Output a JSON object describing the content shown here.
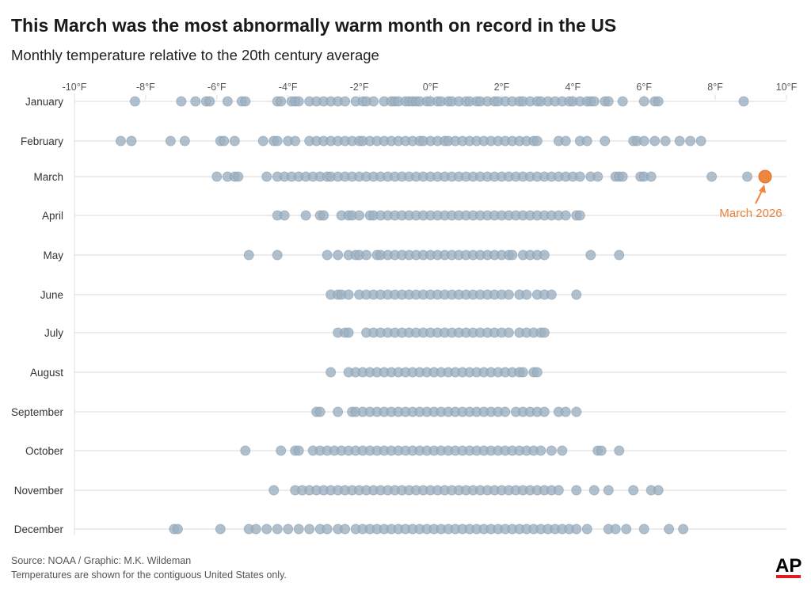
{
  "title": "This March was the most abnormally warm month on record in the US",
  "subtitle": "Monthly temperature relative to the 20th century average",
  "footer": {
    "source": "Source: NOAA / Graphic: M.K. Wildeman",
    "note": "Temperatures are shown for the contiguous United States only."
  },
  "logo": "AP",
  "colors": {
    "dot": "#9cb0c0",
    "dot_stroke": "#879db0",
    "highlight": "#ef8640",
    "grid": "#e6e6e6",
    "logo_bar": "#e21b23"
  },
  "chart_data": {
    "type": "scatter",
    "subtype": "strip",
    "xlim": [
      -10,
      10
    ],
    "x_ticks": [
      -10,
      -8,
      -6,
      -4,
      -2,
      0,
      2,
      4,
      6,
      8,
      10
    ],
    "x_tick_labels": [
      "-10°F",
      "-8°F",
      "-6°F",
      "-4°F",
      "-2°F",
      "0°F",
      "2°F",
      "4°F",
      "6°F",
      "8°F",
      "10°F"
    ],
    "unit": "°F",
    "grid": true,
    "categories": [
      "January",
      "February",
      "March",
      "April",
      "May",
      "June",
      "July",
      "August",
      "September",
      "October",
      "November",
      "December"
    ],
    "series": [
      {
        "values": [
          -8.3,
          -7.0,
          -6.6,
          -6.3,
          -6.2,
          -5.7,
          -5.3,
          -5.2,
          -4.3,
          -4.2,
          -3.9,
          -3.8,
          -3.7,
          -3.4,
          -3.2,
          -3.0,
          -2.8,
          -2.6,
          -2.4,
          -2.1,
          -1.9,
          -1.8,
          -1.6,
          -1.3,
          -1.1,
          -1.0,
          -0.9,
          -0.7,
          -0.6,
          -0.5,
          -0.4,
          -0.3,
          -0.1,
          0.0,
          0.2,
          0.3,
          0.5,
          0.6,
          0.8,
          1.0,
          1.1,
          1.3,
          1.4,
          1.6,
          1.8,
          1.9,
          2.1,
          2.3,
          2.5,
          2.6,
          2.8,
          3.0,
          3.1,
          3.3,
          3.5,
          3.7,
          3.9,
          4.0,
          4.2,
          4.4,
          4.5,
          4.6,
          4.9,
          5.0,
          5.4,
          6.0,
          6.3,
          6.4,
          8.8
        ]
      },
      {
        "values": [
          -8.7,
          -8.4,
          -7.3,
          -6.9,
          -5.9,
          -5.8,
          -5.5,
          -4.7,
          -4.4,
          -4.3,
          -4.0,
          -3.8,
          -3.4,
          -3.2,
          -3.0,
          -2.8,
          -2.6,
          -2.4,
          -2.2,
          -2.0,
          -1.9,
          -1.7,
          -1.5,
          -1.3,
          -1.1,
          -0.9,
          -0.7,
          -0.5,
          -0.3,
          -0.2,
          0.0,
          0.2,
          0.4,
          0.5,
          0.7,
          0.9,
          1.1,
          1.3,
          1.5,
          1.7,
          1.9,
          2.1,
          2.3,
          2.5,
          2.7,
          2.9,
          3.0,
          3.6,
          3.8,
          4.2,
          4.4,
          4.9,
          5.7,
          5.8,
          6.0,
          6.3,
          6.6,
          7.0,
          7.3,
          7.6
        ]
      },
      {
        "values": [
          -6.0,
          -5.7,
          -5.5,
          -5.4,
          -4.6,
          -4.3,
          -4.1,
          -3.9,
          -3.7,
          -3.5,
          -3.3,
          -3.1,
          -2.9,
          -2.8,
          -2.6,
          -2.4,
          -2.2,
          -2.0,
          -1.8,
          -1.6,
          -1.4,
          -1.2,
          -1.0,
          -0.8,
          -0.6,
          -0.4,
          -0.2,
          0.0,
          0.2,
          0.4,
          0.6,
          0.8,
          1.0,
          1.2,
          1.4,
          1.6,
          1.8,
          2.0,
          2.2,
          2.4,
          2.6,
          2.8,
          3.0,
          3.2,
          3.4,
          3.6,
          3.8,
          4.0,
          4.2,
          4.5,
          4.7,
          5.2,
          5.3,
          5.4,
          5.9,
          6.0,
          6.2,
          7.9,
          8.9
        ]
      },
      {
        "values": [
          -4.3,
          -4.1,
          -3.5,
          -3.1,
          -3.0,
          -2.5,
          -2.3,
          -2.2,
          -2.0,
          -1.7,
          -1.6,
          -1.4,
          -1.2,
          -1.0,
          -0.8,
          -0.6,
          -0.4,
          -0.2,
          0.0,
          0.2,
          0.4,
          0.6,
          0.8,
          1.0,
          1.2,
          1.4,
          1.6,
          1.8,
          2.0,
          2.2,
          2.4,
          2.6,
          2.8,
          3.0,
          3.2,
          3.4,
          3.6,
          3.8,
          4.1,
          4.2
        ]
      },
      {
        "values": [
          -5.1,
          -4.3,
          -2.9,
          -2.6,
          -2.3,
          -2.1,
          -2.0,
          -1.8,
          -1.5,
          -1.4,
          -1.2,
          -1.0,
          -0.8,
          -0.6,
          -0.4,
          -0.2,
          0.0,
          0.2,
          0.4,
          0.6,
          0.8,
          1.0,
          1.2,
          1.4,
          1.6,
          1.8,
          2.0,
          2.2,
          2.3,
          2.6,
          2.8,
          3.0,
          3.2,
          4.5,
          5.3
        ]
      },
      {
        "values": [
          -2.8,
          -2.6,
          -2.5,
          -2.3,
          -2.0,
          -1.8,
          -1.6,
          -1.4,
          -1.2,
          -1.0,
          -0.8,
          -0.6,
          -0.4,
          -0.2,
          0.0,
          0.2,
          0.4,
          0.6,
          0.8,
          1.0,
          1.2,
          1.4,
          1.6,
          1.8,
          2.0,
          2.2,
          2.5,
          2.7,
          3.0,
          3.2,
          3.4,
          4.1
        ]
      },
      {
        "values": [
          -2.6,
          -2.4,
          -2.3,
          -1.8,
          -1.6,
          -1.4,
          -1.2,
          -1.0,
          -0.8,
          -0.6,
          -0.4,
          -0.2,
          0.0,
          0.2,
          0.4,
          0.6,
          0.8,
          1.0,
          1.2,
          1.4,
          1.6,
          1.8,
          2.0,
          2.2,
          2.5,
          2.7,
          2.9,
          3.1,
          3.2
        ]
      },
      {
        "values": [
          -2.8,
          -2.3,
          -2.1,
          -1.9,
          -1.7,
          -1.5,
          -1.3,
          -1.1,
          -0.9,
          -0.7,
          -0.5,
          -0.3,
          -0.1,
          0.1,
          0.3,
          0.5,
          0.7,
          0.9,
          1.1,
          1.3,
          1.5,
          1.7,
          1.9,
          2.1,
          2.3,
          2.5,
          2.6,
          2.9,
          3.0
        ]
      },
      {
        "values": [
          -3.2,
          -3.1,
          -2.6,
          -2.2,
          -2.1,
          -1.9,
          -1.7,
          -1.5,
          -1.3,
          -1.1,
          -0.9,
          -0.7,
          -0.5,
          -0.3,
          -0.1,
          0.1,
          0.3,
          0.5,
          0.7,
          0.9,
          1.1,
          1.3,
          1.5,
          1.7,
          1.9,
          2.1,
          2.4,
          2.6,
          2.8,
          3.0,
          3.2,
          3.6,
          3.8,
          4.1
        ]
      },
      {
        "values": [
          -5.2,
          -4.2,
          -3.8,
          -3.7,
          -3.3,
          -3.1,
          -2.9,
          -2.7,
          -2.5,
          -2.3,
          -2.1,
          -1.9,
          -1.7,
          -1.5,
          -1.3,
          -1.1,
          -0.9,
          -0.7,
          -0.5,
          -0.3,
          -0.1,
          0.1,
          0.3,
          0.5,
          0.7,
          0.9,
          1.1,
          1.3,
          1.5,
          1.7,
          1.9,
          2.1,
          2.3,
          2.5,
          2.7,
          2.9,
          3.1,
          3.4,
          3.7,
          4.7,
          4.8,
          5.3
        ]
      },
      {
        "values": [
          -4.4,
          -3.8,
          -3.6,
          -3.4,
          -3.2,
          -3.0,
          -2.8,
          -2.6,
          -2.4,
          -2.2,
          -2.0,
          -1.8,
          -1.6,
          -1.4,
          -1.2,
          -1.0,
          -0.8,
          -0.6,
          -0.4,
          -0.2,
          0.0,
          0.2,
          0.4,
          0.6,
          0.8,
          1.0,
          1.2,
          1.4,
          1.6,
          1.8,
          2.0,
          2.2,
          2.4,
          2.6,
          2.8,
          3.0,
          3.2,
          3.4,
          3.6,
          4.1,
          4.6,
          5.0,
          5.7,
          6.2,
          6.4
        ]
      },
      {
        "values": [
          -7.2,
          -7.1,
          -5.9,
          -5.1,
          -4.9,
          -4.6,
          -4.3,
          -4.0,
          -3.7,
          -3.4,
          -3.1,
          -2.9,
          -2.6,
          -2.4,
          -2.1,
          -1.9,
          -1.7,
          -1.5,
          -1.3,
          -1.1,
          -0.9,
          -0.7,
          -0.5,
          -0.3,
          -0.1,
          0.1,
          0.3,
          0.5,
          0.7,
          0.9,
          1.1,
          1.3,
          1.5,
          1.7,
          1.9,
          2.1,
          2.3,
          2.5,
          2.7,
          2.9,
          3.1,
          3.3,
          3.5,
          3.7,
          3.9,
          4.1,
          4.4,
          5.0,
          5.2,
          5.5,
          6.0,
          6.7,
          7.1
        ]
      }
    ],
    "highlight": {
      "category": "March",
      "value": 9.4,
      "label": "March 2026"
    }
  }
}
